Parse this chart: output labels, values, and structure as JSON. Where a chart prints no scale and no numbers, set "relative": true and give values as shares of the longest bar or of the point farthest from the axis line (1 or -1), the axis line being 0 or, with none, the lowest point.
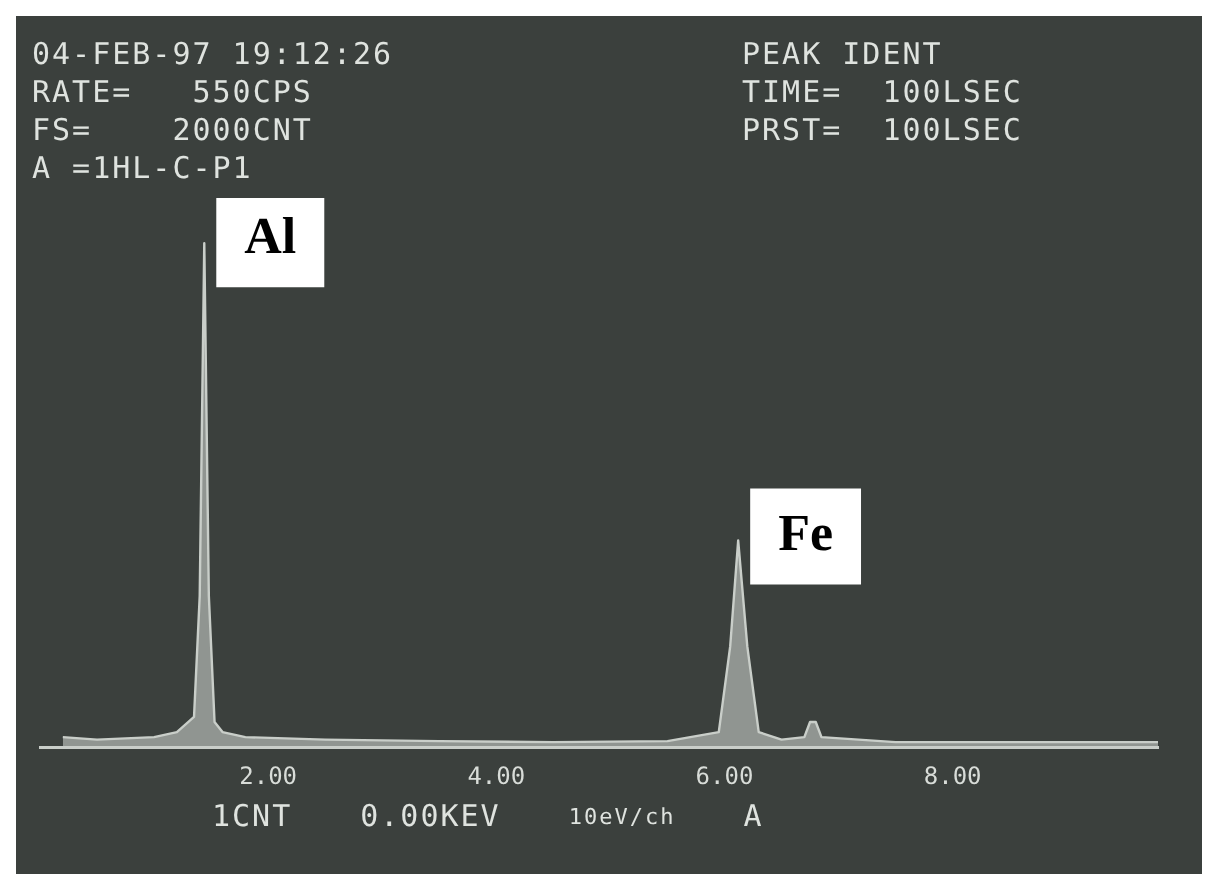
{
  "chart_data": {
    "type": "area",
    "relative": true,
    "color": "#c9cec9",
    "grid": false,
    "tick_labels": "x",
    "x": [
      0.2,
      0.5,
      1.0,
      1.2,
      1.35,
      1.4,
      1.44,
      1.48,
      1.53,
      1.6,
      1.8,
      2.5,
      3.5,
      4.5,
      5.5,
      5.95,
      6.05,
      6.12,
      6.2,
      6.3,
      6.5,
      6.7,
      6.75,
      6.8,
      6.85,
      7.5,
      8.5,
      9.5,
      9.8
    ],
    "values": [
      0.02,
      0.015,
      0.02,
      0.03,
      0.06,
      0.3,
      1.0,
      0.3,
      0.05,
      0.03,
      0.02,
      0.015,
      0.012,
      0.01,
      0.012,
      0.03,
      0.2,
      0.41,
      0.2,
      0.03,
      0.015,
      0.02,
      0.05,
      0.05,
      0.02,
      0.01,
      0.01,
      0.01,
      0.01
    ],
    "xlim": [
      0,
      9.8
    ],
    "xticks": [
      {
        "value": 2,
        "label": "2.00"
      },
      {
        "value": 4,
        "label": "4.00"
      },
      {
        "value": 6,
        "label": "6.00"
      },
      {
        "value": 8,
        "label": "8.00"
      }
    ],
    "annotations": [
      "04-FEB-97 19:12:26",
      "PEAK IDENT",
      "RATE=   550CPS",
      "TIME=  100LSEC",
      "FS=    2000CNT",
      "PRST=  100LSEC",
      "A =1HL-C-P1",
      "1CNT",
      "0.00KEV",
      "10eV/ch",
      "A",
      {
        "text": "Al",
        "x": 1.44,
        "y": 1.0
      },
      {
        "text": "Fe",
        "x": 6.12,
        "y": 0.41
      }
    ]
  }
}
